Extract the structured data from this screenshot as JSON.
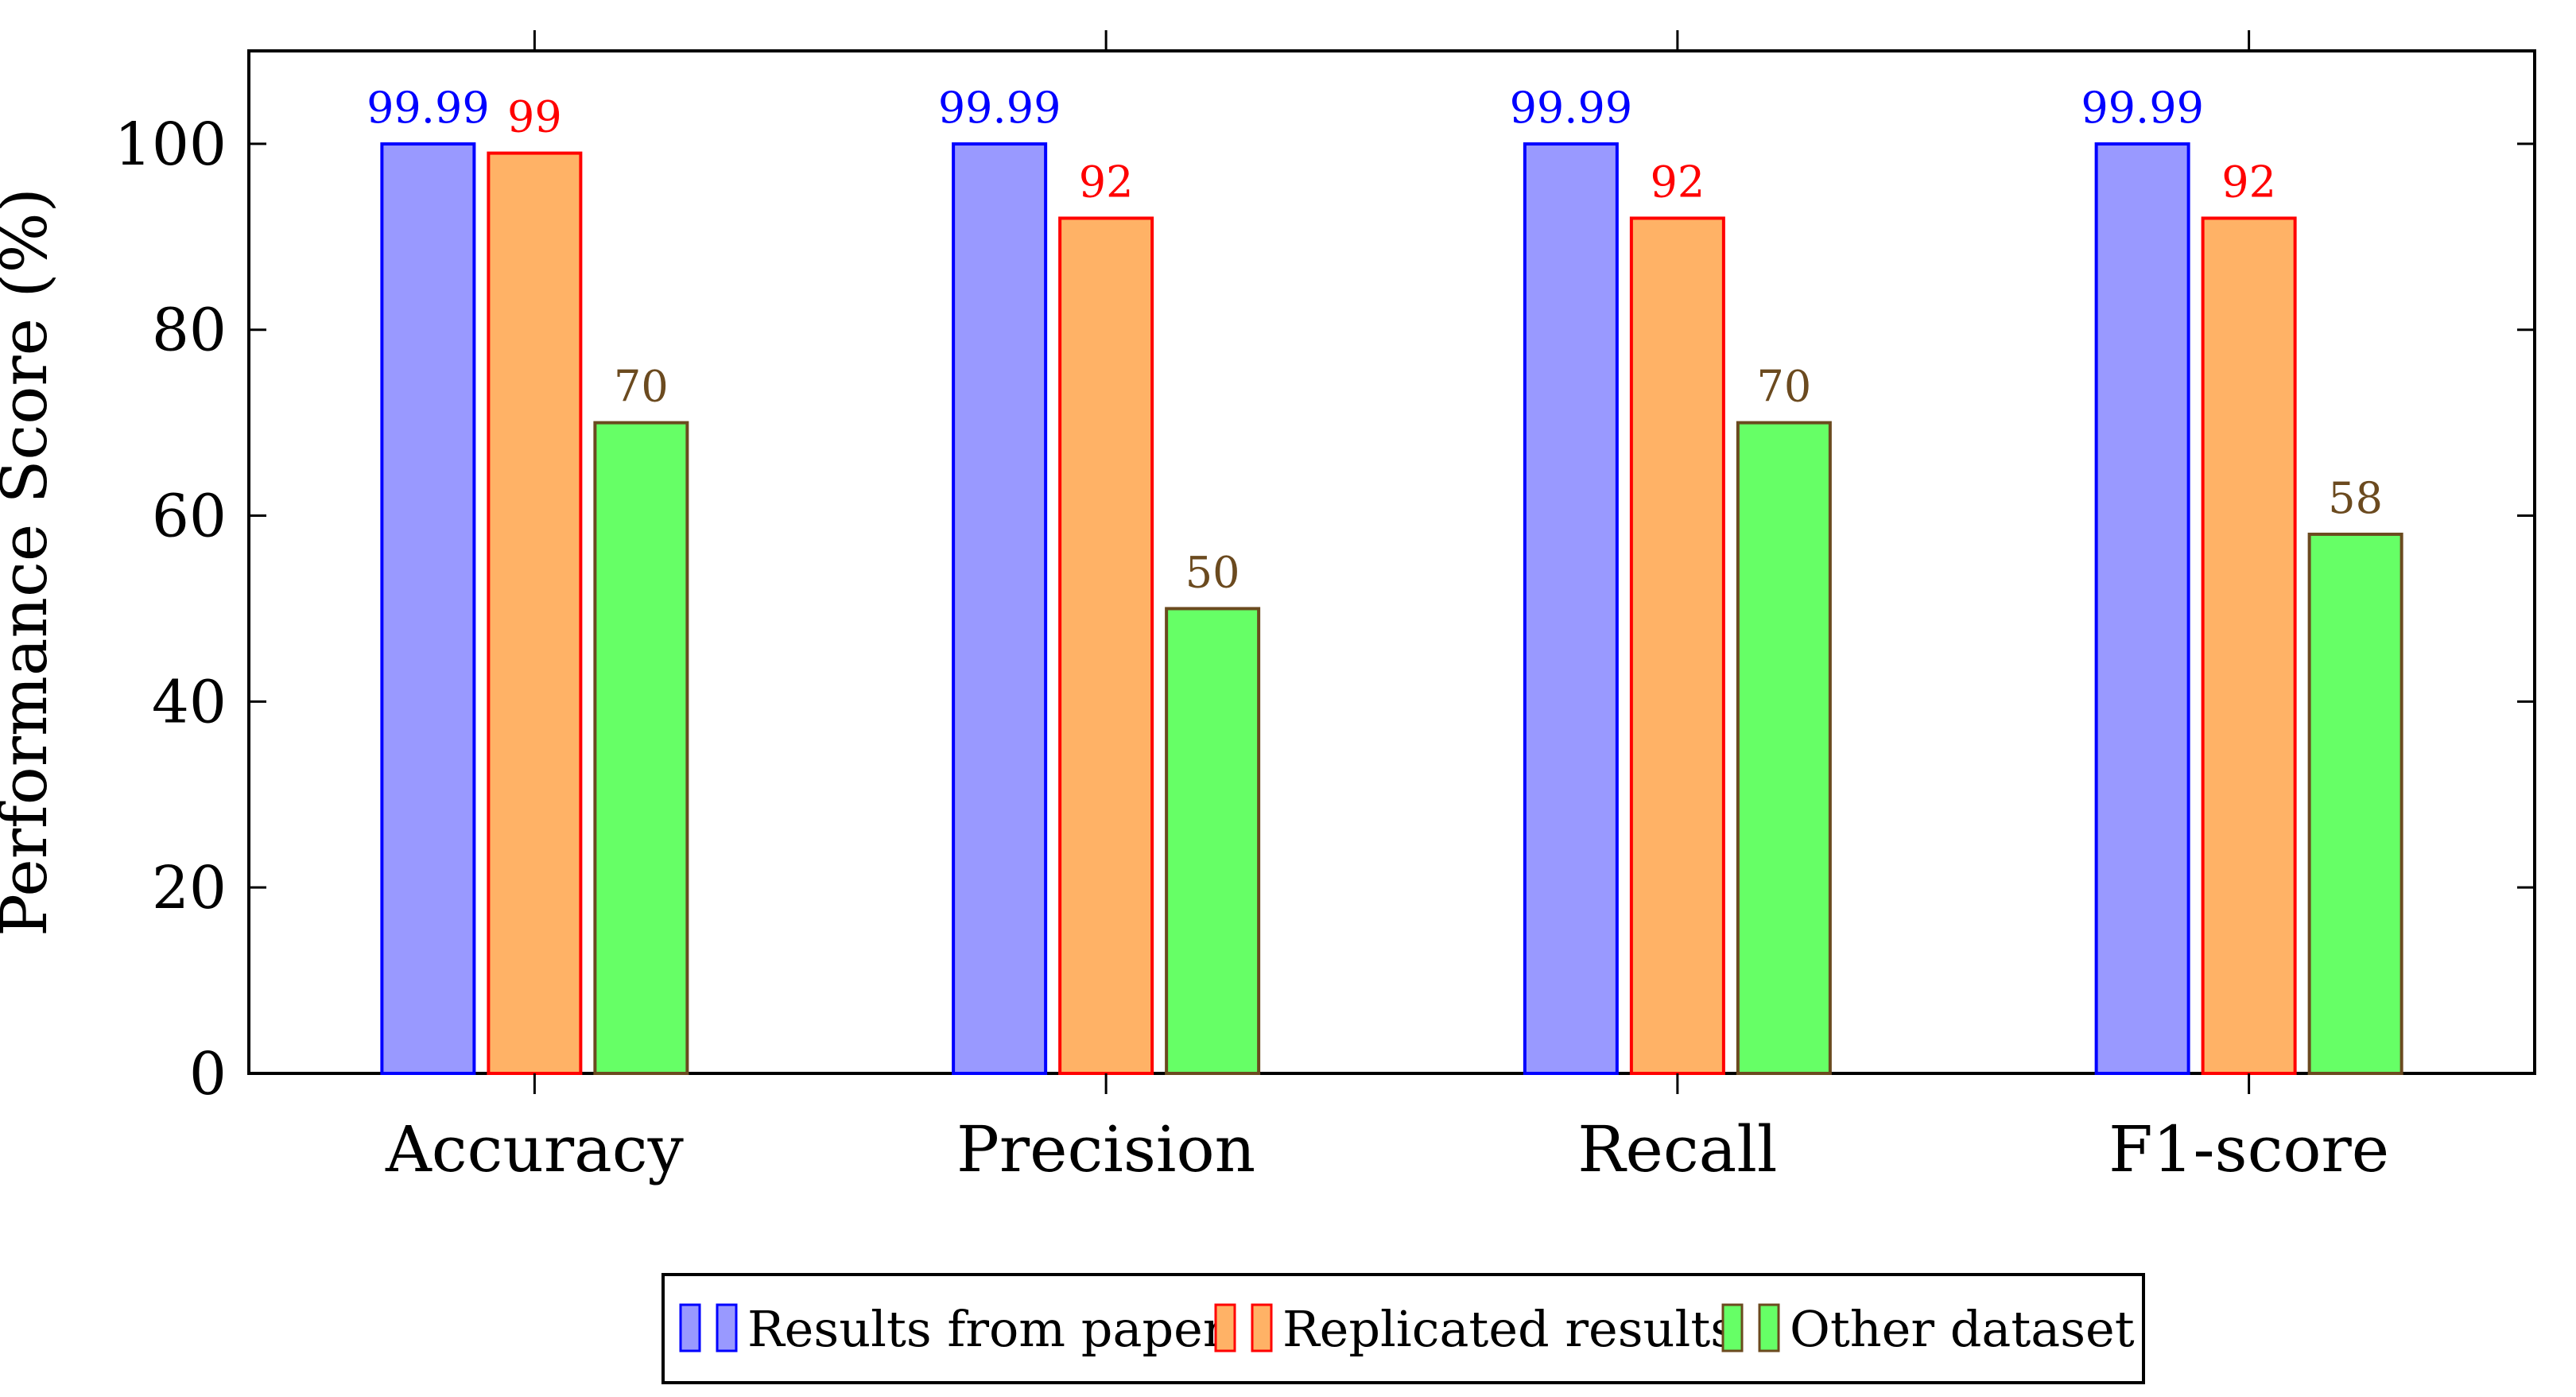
{
  "chart_data": {
    "type": "bar",
    "categories": [
      "Accuracy",
      "Precision",
      "Recall",
      "F1-score"
    ],
    "series": [
      {
        "name": "Results from paper",
        "values": [
          99.99,
          99.99,
          99.99,
          99.99
        ],
        "labels": [
          "99.99",
          "99.99",
          "99.99",
          "99.99"
        ],
        "fill": "#9999ff",
        "stroke": "#0000ff",
        "label_color": "#0000ff"
      },
      {
        "name": "Replicated results",
        "values": [
          99,
          92,
          92,
          92
        ],
        "labels": [
          "99",
          "92",
          "92",
          "92"
        ],
        "fill": "#ffb266",
        "stroke": "#ff0000",
        "label_color": "#ff0000"
      },
      {
        "name": "Other dataset",
        "values": [
          70,
          50,
          70,
          58
        ],
        "labels": [
          "70",
          "50",
          "70",
          "58"
        ],
        "fill": "#66ff66",
        "stroke": "#6b4a1f",
        "label_color": "#6b4a1f"
      }
    ],
    "ylabel": "Performance Score (%)",
    "xlabel": "",
    "title": "",
    "ylim": [
      0,
      110
    ],
    "yticks": [
      0,
      20,
      40,
      60,
      80,
      100
    ],
    "grid": false,
    "legend_position": "bottom"
  }
}
